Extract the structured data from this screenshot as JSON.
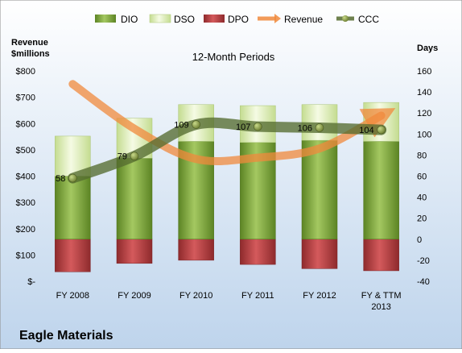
{
  "chart_data": {
    "type": "bar",
    "title": "12-Month Periods",
    "company": "Eagle Materials",
    "left_axis": {
      "label_line1": "Revenue",
      "label_line2": "$millions",
      "ticks": [
        "$-",
        "$100",
        "$200",
        "$300",
        "$400",
        "$500",
        "$600",
        "$700",
        "$800"
      ],
      "range": [
        0,
        800
      ]
    },
    "right_axis": {
      "label": "Days",
      "ticks": [
        "-40",
        "-20",
        "0",
        "20",
        "40",
        "60",
        "80",
        "100",
        "120",
        "140",
        "160"
      ],
      "range": [
        -40,
        160
      ]
    },
    "categories": [
      "FY 2008",
      "FY 2009",
      "FY 2010",
      "FY 2011",
      "FY 2012",
      "FY & TTM 2013"
    ],
    "legend": [
      "DIO",
      "DSO",
      "DPO",
      "Revenue",
      "CCC"
    ],
    "series": [
      {
        "name": "DIO",
        "axis": "days",
        "values": [
          60,
          77,
          93,
          92,
          94,
          93
        ],
        "color": "#6f9a2c"
      },
      {
        "name": "DSO",
        "axis": "days",
        "values": [
          38,
          38,
          35,
          35,
          34,
          37
        ],
        "color": "#dcedb9"
      },
      {
        "name": "DPO",
        "axis": "days",
        "values": [
          -31,
          -23,
          -20,
          -24,
          -28,
          -30
        ],
        "color": "#b23b3d"
      },
      {
        "name": "Revenue",
        "axis": "revenue",
        "values": [
          750,
          580,
          465,
          470,
          505,
          630
        ],
        "color": "#f08a3c"
      },
      {
        "name": "CCC",
        "axis": "days",
        "values": [
          58,
          79,
          109,
          107,
          106,
          104
        ],
        "color": "#556b2f"
      }
    ],
    "ccc_labels": [
      "58",
      "79",
      "109",
      "107",
      "106",
      "104"
    ],
    "legend_position": "top",
    "grid": false
  }
}
